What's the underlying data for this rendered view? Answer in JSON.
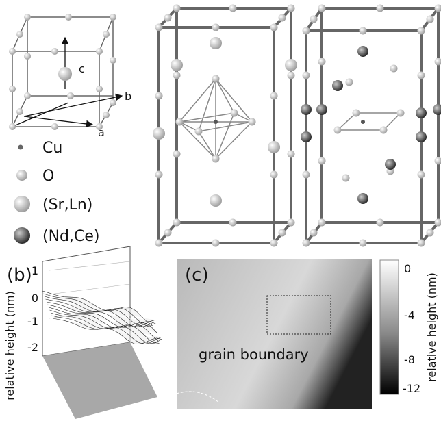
{
  "panel_a": {
    "vectors": [
      "c",
      "b",
      "a"
    ],
    "legend": [
      "Cu",
      "O",
      "(Sr,Ln)",
      "(Nd,Ce)"
    ]
  },
  "panel_b": {
    "label": "(b)",
    "yticks": [
      1,
      0,
      -1,
      -2
    ],
    "ylabel": "relative height (nm)"
  },
  "panel_c": {
    "label": "(c)",
    "annotation": "grain boundary",
    "colorbar_ticks": [
      0,
      -4,
      -8,
      -12
    ],
    "colorbar_label": "relative height (nm)"
  }
}
